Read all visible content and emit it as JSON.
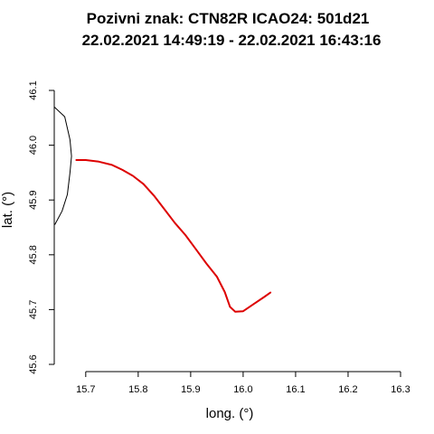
{
  "chart_data": {
    "type": "line",
    "title": [
      "Pozivni znak: CTN82R   ICAO24: 501d21",
      "22.02.2021 14:49:19 - 22.02.2021 16:43:16"
    ],
    "xlabel": "long. (°)",
    "ylabel": "lat. (°)",
    "xlim": [
      15.64,
      16.3
    ],
    "ylim": [
      45.6,
      46.1
    ],
    "xticks": [
      "15.7",
      "15.8",
      "15.9",
      "16.0",
      "16.1",
      "16.2",
      "16.3"
    ],
    "yticks": [
      "45.6",
      "45.7",
      "45.8",
      "45.9",
      "46.0",
      "46.1"
    ],
    "grid": false,
    "border": {
      "color": "#000000",
      "points": [
        [
          15.64,
          46.07
        ],
        [
          15.66,
          46.052
        ],
        [
          15.67,
          46.01
        ],
        [
          15.673,
          45.98
        ],
        [
          15.67,
          45.95
        ],
        [
          15.665,
          45.91
        ],
        [
          15.655,
          45.88
        ],
        [
          15.641,
          45.855
        ]
      ]
    },
    "series": [
      {
        "color": "#dd0000",
        "x": [
          15.682,
          15.7,
          15.725,
          15.75,
          15.77,
          15.79,
          15.81,
          15.83,
          15.85,
          15.87,
          15.89,
          15.91,
          15.93,
          15.95,
          15.965,
          15.975,
          15.985,
          16.0,
          16.02,
          16.04,
          16.052
        ],
        "y": [
          45.973,
          45.973,
          45.97,
          45.964,
          45.955,
          45.944,
          45.929,
          45.908,
          45.883,
          45.858,
          45.836,
          45.81,
          45.784,
          45.76,
          45.732,
          45.705,
          45.696,
          45.697,
          45.71,
          45.723,
          45.731
        ]
      }
    ]
  }
}
